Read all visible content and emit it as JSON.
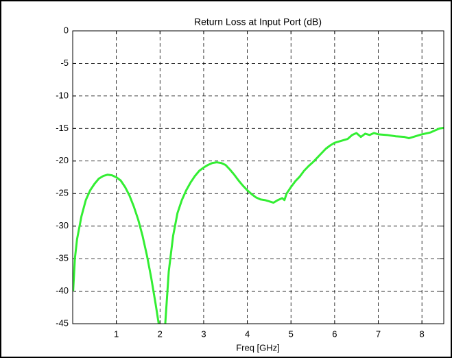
{
  "chart_data": {
    "type": "line",
    "title": "Return Loss at Input Port (dB)",
    "x_label": "Freq [GHz]",
    "x": [
      0.01,
      0.05,
      0.1,
      0.2,
      0.3,
      0.4,
      0.5,
      0.6,
      0.7,
      0.8,
      0.9,
      1.0,
      1.1,
      1.2,
      1.3,
      1.4,
      1.5,
      1.6,
      1.7,
      1.8,
      1.9,
      1.97,
      2.05,
      2.12,
      2.2,
      2.3,
      2.4,
      2.5,
      2.6,
      2.7,
      2.8,
      2.9,
      3.0,
      3.1,
      3.2,
      3.3,
      3.4,
      3.5,
      3.6,
      3.7,
      3.8,
      3.9,
      4.0,
      4.1,
      4.2,
      4.3,
      4.4,
      4.5,
      4.6,
      4.7,
      4.8,
      4.85,
      4.9,
      5.0,
      5.1,
      5.2,
      5.3,
      5.4,
      5.5,
      5.6,
      5.7,
      5.8,
      5.9,
      6.0,
      6.1,
      6.2,
      6.3,
      6.4,
      6.5,
      6.6,
      6.7,
      6.8,
      6.9,
      7.0,
      7.2,
      7.4,
      7.6,
      7.7,
      7.8,
      8.0,
      8.2,
      8.4,
      8.5
    ],
    "series": [
      {
        "color": "#33ee33",
        "values": [
          -40,
          -35,
          -32,
          -28.5,
          -26,
          -24.5,
          -23.5,
          -22.7,
          -22.3,
          -22.1,
          -22.2,
          -22.5,
          -23,
          -24,
          -25.3,
          -27,
          -29,
          -31.5,
          -34.5,
          -38,
          -42,
          -45,
          -50,
          -45,
          -37,
          -31.5,
          -28,
          -26,
          -24.5,
          -23.3,
          -22.3,
          -21.5,
          -21,
          -20.6,
          -20.3,
          -20.2,
          -20.3,
          -20.6,
          -21.3,
          -22.1,
          -23,
          -23.8,
          -24.5,
          -25.1,
          -25.6,
          -25.9,
          -26,
          -26.2,
          -26.4,
          -26,
          -25.7,
          -26,
          -25,
          -24,
          -23.1,
          -22.4,
          -21.5,
          -20.8,
          -20.2,
          -19.5,
          -18.8,
          -18.1,
          -17.6,
          -17.2,
          -17,
          -16.8,
          -16.6,
          -16,
          -15.7,
          -16.3,
          -15.8,
          -16,
          -15.7,
          -15.9,
          -16,
          -16.2,
          -16.3,
          -16.5,
          -16.3,
          -15.9,
          -15.6,
          -15,
          -14.9
        ]
      }
    ],
    "xlim": [
      0,
      8.5
    ],
    "xticks": [
      1,
      2,
      3,
      4,
      5,
      6,
      7,
      8
    ],
    "ylim": [
      -45,
      0
    ],
    "yticks": [
      0,
      -5,
      -10,
      -15,
      -20,
      -25,
      -30,
      -35,
      -40,
      -45
    ],
    "grid": true
  }
}
